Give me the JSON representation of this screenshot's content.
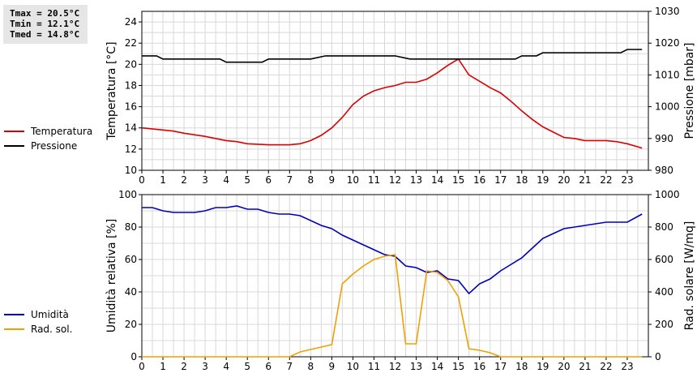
{
  "stats": {
    "tmax": "Tmax = 20.5°C",
    "tmin": "Tmin = 12.1°C",
    "tmed": "Tmed = 14.8°C"
  },
  "colors": {
    "temperature": "#dd0000",
    "pressure": "#000000",
    "humidity": "#0000bb",
    "radiation": "#f0a000",
    "grid": "#d8d8d8"
  },
  "chart_data": [
    {
      "type": "line",
      "grid": true,
      "xlabel": "",
      "ylabel": "Temperatura [°C]",
      "y2label": "Pressione [mbar]",
      "xlim": [
        0,
        24
      ],
      "ylim": [
        10,
        25
      ],
      "y2lim": [
        980,
        1030
      ],
      "xticks": [
        "0",
        "1",
        "2",
        "3",
        "4",
        "5",
        "6",
        "7",
        "8",
        "9",
        "10",
        "11",
        "12",
        "13",
        "14",
        "15",
        "16",
        "17",
        "18",
        "19",
        "20",
        "21",
        "22",
        "23"
      ],
      "yticks": [
        "10",
        "12",
        "14",
        "16",
        "18",
        "20",
        "22",
        "24"
      ],
      "y2ticks": [
        "980",
        "990",
        "1000",
        "1010",
        "1020",
        "1030"
      ],
      "series": [
        {
          "name": "Temperatura",
          "axis": "left",
          "colorKey": "temperature",
          "x": [
            0,
            1,
            1.5,
            2,
            3,
            3.5,
            4,
            4.5,
            5,
            6,
            7,
            7.5,
            8,
            8.5,
            9,
            9.5,
            10,
            10.5,
            11,
            11.5,
            12,
            12.5,
            13,
            13.5,
            14,
            14.5,
            15,
            15.5,
            16,
            16.5,
            17,
            17.5,
            18,
            18.5,
            19,
            19.5,
            20,
            20.5,
            21,
            21.5,
            22,
            22.5,
            23,
            23.7
          ],
          "y": [
            14.0,
            13.8,
            13.7,
            13.5,
            13.2,
            13.0,
            12.8,
            12.7,
            12.5,
            12.4,
            12.4,
            12.5,
            12.8,
            13.3,
            14.0,
            15.0,
            16.2,
            17.0,
            17.5,
            17.8,
            18.0,
            18.3,
            18.3,
            18.6,
            19.2,
            19.9,
            20.5,
            19.0,
            18.4,
            17.8,
            17.3,
            16.5,
            15.6,
            14.8,
            14.1,
            13.6,
            13.1,
            13.0,
            12.8,
            12.8,
            12.8,
            12.7,
            12.5,
            12.1
          ]
        },
        {
          "name": "Pressione",
          "axis": "right",
          "colorKey": "pressure",
          "x": [
            0,
            0.7,
            1,
            2,
            3,
            3.7,
            4,
            4.5,
            5,
            5.7,
            6,
            7,
            7.7,
            8,
            8.7,
            9,
            10,
            11,
            12,
            12.7,
            13,
            14,
            15,
            16,
            17,
            17.7,
            18,
            18.7,
            19,
            20,
            21,
            22,
            22.7,
            23,
            23.7
          ],
          "y": [
            1016,
            1016,
            1015,
            1015,
            1015,
            1015,
            1014,
            1014,
            1014,
            1014,
            1015,
            1015,
            1015,
            1015,
            1016,
            1016,
            1016,
            1016,
            1016,
            1015,
            1015,
            1015,
            1015,
            1015,
            1015,
            1015,
            1016,
            1016,
            1017,
            1017,
            1017,
            1017,
            1017,
            1018,
            1018
          ]
        }
      ],
      "legend": [
        "Temperatura",
        "Pressione"
      ],
      "legend_position": "left"
    },
    {
      "type": "line",
      "grid": true,
      "xlabel": "",
      "ylabel": "Umidità relativa [%]",
      "y2label": "Rad. solare [W/mq]",
      "xlim": [
        0,
        24
      ],
      "ylim": [
        0,
        100
      ],
      "y2lim": [
        0,
        1000
      ],
      "xticks": [
        "0",
        "1",
        "2",
        "3",
        "4",
        "5",
        "6",
        "7",
        "8",
        "9",
        "10",
        "11",
        "12",
        "13",
        "14",
        "15",
        "16",
        "17",
        "18",
        "19",
        "20",
        "21",
        "22",
        "23"
      ],
      "yticks": [
        "0",
        "20",
        "40",
        "60",
        "80",
        "100"
      ],
      "y2ticks": [
        "0",
        "200",
        "400",
        "600",
        "800",
        "1000"
      ],
      "series": [
        {
          "name": "Umidità",
          "axis": "left",
          "colorKey": "humidity",
          "x": [
            0,
            0.5,
            1,
            1.5,
            2,
            2.5,
            3,
            3.5,
            4,
            4.5,
            5,
            5.5,
            6,
            6.5,
            7,
            7.5,
            8,
            8.5,
            9,
            9.5,
            10,
            10.5,
            11,
            11.5,
            12,
            12.5,
            13,
            13.5,
            14,
            14.5,
            15,
            15.5,
            16,
            16.5,
            17,
            17.5,
            18,
            18.5,
            19,
            19.5,
            20,
            20.5,
            21,
            21.5,
            22,
            22.5,
            23,
            23.7
          ],
          "y": [
            92,
            92,
            90,
            89,
            89,
            89,
            90,
            92,
            92,
            93,
            91,
            91,
            89,
            88,
            88,
            87,
            84,
            81,
            79,
            75,
            72,
            69,
            66,
            63,
            62,
            56,
            55,
            52,
            53,
            48,
            47,
            39,
            45,
            48,
            53,
            57,
            61,
            67,
            73,
            76,
            79,
            80,
            81,
            82,
            83,
            83,
            83,
            88
          ]
        },
        {
          "name": "Rad. sol.",
          "axis": "right",
          "colorKey": "radiation",
          "x": [
            0,
            7,
            7.5,
            8,
            8.5,
            9,
            9.5,
            10,
            10.5,
            11,
            11.5,
            12,
            12.5,
            13,
            13.5,
            14,
            14.5,
            15,
            15.5,
            16,
            16.5,
            17,
            23.7
          ],
          "y": [
            0,
            0,
            30,
            45,
            60,
            75,
            450,
            510,
            560,
            600,
            620,
            630,
            80,
            80,
            530,
            520,
            470,
            370,
            50,
            40,
            25,
            0,
            0
          ]
        }
      ],
      "legend": [
        "Umidità",
        "Rad. sol."
      ],
      "legend_position": "left"
    }
  ]
}
